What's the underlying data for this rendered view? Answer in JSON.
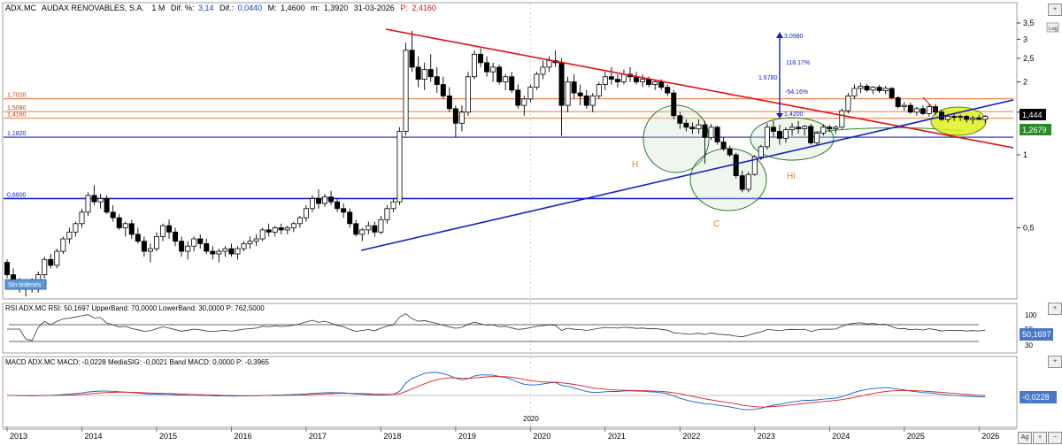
{
  "header": {
    "symbol": "ADX.MC",
    "company": "AUDAX RENOVABLES, S.A.",
    "period": "1 M",
    "dif_pct_label": "Dif. %:",
    "dif_pct": "3,14",
    "dif_label": "Dif.:",
    "dif": "0,0440",
    "max_label": "M:",
    "max": "1,4600",
    "min_label": "m:",
    "min": "1,3920",
    "date": "31-03-2026",
    "p_label": "P:",
    "p": "2,4160"
  },
  "colors": {
    "up_candle": "#ffffff",
    "down_candle": "#000000",
    "resistance_line": "#e01010",
    "support_line": "#1020c8",
    "horizontal_levels": "#f07838",
    "rsi_line": "#303030",
    "macd_line": "#1060d0",
    "signal_line": "#e02020",
    "highlight_ellipse": "#e0f020"
  },
  "chart_data": [
    {
      "type": "candlestick",
      "panel": "price",
      "scale": "log",
      "period": "monthly",
      "x_ticks": [
        "2013",
        "2014",
        "2015",
        "2016",
        "2017",
        "2018",
        "2019",
        "2020",
        "2021",
        "2022",
        "2023",
        "2024",
        "2025",
        "2026"
      ],
      "y_ticks": [
        "3,5",
        "3",
        "2,5",
        "2",
        "1,5",
        "1",
        "0,5"
      ],
      "ylim": [
        0.25,
        3.8
      ],
      "start_year": 2013,
      "ohlc": [
        [
          0.36,
          0.37,
          0.31,
          0.32
        ],
        [
          0.32,
          0.34,
          0.29,
          0.3
        ],
        [
          0.3,
          0.31,
          0.27,
          0.28
        ],
        [
          0.28,
          0.3,
          0.26,
          0.29
        ],
        [
          0.29,
          0.31,
          0.27,
          0.28
        ],
        [
          0.28,
          0.33,
          0.27,
          0.32
        ],
        [
          0.32,
          0.38,
          0.31,
          0.37
        ],
        [
          0.37,
          0.39,
          0.34,
          0.35
        ],
        [
          0.35,
          0.41,
          0.34,
          0.4
        ],
        [
          0.4,
          0.46,
          0.39,
          0.45
        ],
        [
          0.45,
          0.5,
          0.43,
          0.48
        ],
        [
          0.48,
          0.53,
          0.46,
          0.52
        ],
        [
          0.52,
          0.6,
          0.5,
          0.58
        ],
        [
          0.58,
          0.7,
          0.56,
          0.68
        ],
        [
          0.68,
          0.75,
          0.62,
          0.64
        ],
        [
          0.64,
          0.69,
          0.6,
          0.66
        ],
        [
          0.66,
          0.68,
          0.57,
          0.58
        ],
        [
          0.58,
          0.62,
          0.53,
          0.55
        ],
        [
          0.55,
          0.57,
          0.49,
          0.5
        ],
        [
          0.5,
          0.53,
          0.46,
          0.52
        ],
        [
          0.52,
          0.54,
          0.45,
          0.47
        ],
        [
          0.47,
          0.5,
          0.43,
          0.44
        ],
        [
          0.44,
          0.46,
          0.38,
          0.4
        ],
        [
          0.4,
          0.43,
          0.36,
          0.41
        ],
        [
          0.41,
          0.48,
          0.4,
          0.46
        ],
        [
          0.46,
          0.52,
          0.44,
          0.51
        ],
        [
          0.51,
          0.54,
          0.45,
          0.48
        ],
        [
          0.48,
          0.5,
          0.42,
          0.44
        ],
        [
          0.44,
          0.46,
          0.38,
          0.4
        ],
        [
          0.4,
          0.44,
          0.37,
          0.42
        ],
        [
          0.42,
          0.46,
          0.4,
          0.45
        ],
        [
          0.45,
          0.47,
          0.41,
          0.43
        ],
        [
          0.43,
          0.45,
          0.39,
          0.4
        ],
        [
          0.4,
          0.42,
          0.37,
          0.39
        ],
        [
          0.39,
          0.41,
          0.36,
          0.4
        ],
        [
          0.4,
          0.42,
          0.38,
          0.41
        ],
        [
          0.41,
          0.43,
          0.38,
          0.39
        ],
        [
          0.39,
          0.42,
          0.37,
          0.41
        ],
        [
          0.41,
          0.44,
          0.4,
          0.43
        ],
        [
          0.43,
          0.46,
          0.41,
          0.44
        ],
        [
          0.44,
          0.47,
          0.42,
          0.45
        ],
        [
          0.45,
          0.5,
          0.44,
          0.49
        ],
        [
          0.49,
          0.52,
          0.46,
          0.48
        ],
        [
          0.48,
          0.51,
          0.46,
          0.5
        ],
        [
          0.5,
          0.52,
          0.47,
          0.49
        ],
        [
          0.49,
          0.51,
          0.47,
          0.5
        ],
        [
          0.5,
          0.53,
          0.48,
          0.52
        ],
        [
          0.52,
          0.56,
          0.5,
          0.55
        ],
        [
          0.55,
          0.62,
          0.53,
          0.6
        ],
        [
          0.6,
          0.68,
          0.58,
          0.66
        ],
        [
          0.66,
          0.72,
          0.6,
          0.63
        ],
        [
          0.63,
          0.69,
          0.61,
          0.67
        ],
        [
          0.67,
          0.71,
          0.62,
          0.64
        ],
        [
          0.64,
          0.66,
          0.58,
          0.6
        ],
        [
          0.6,
          0.63,
          0.55,
          0.58
        ],
        [
          0.58,
          0.6,
          0.5,
          0.52
        ],
        [
          0.52,
          0.54,
          0.46,
          0.47
        ],
        [
          0.47,
          0.5,
          0.44,
          0.49
        ],
        [
          0.49,
          0.53,
          0.47,
          0.51
        ],
        [
          0.51,
          0.53,
          0.46,
          0.48
        ],
        [
          0.48,
          0.56,
          0.47,
          0.54
        ],
        [
          0.54,
          0.62,
          0.52,
          0.6
        ],
        [
          0.6,
          0.66,
          0.58,
          0.64
        ],
        [
          0.64,
          1.3,
          0.62,
          1.25
        ],
        [
          1.25,
          2.9,
          1.2,
          2.7
        ],
        [
          2.7,
          3.25,
          2.2,
          2.3
        ],
        [
          2.3,
          2.55,
          1.9,
          2.05
        ],
        [
          2.05,
          2.4,
          1.85,
          2.25
        ],
        [
          2.25,
          2.6,
          2.0,
          2.1
        ],
        [
          2.1,
          2.3,
          1.8,
          1.95
        ],
        [
          1.95,
          2.1,
          1.7,
          1.75
        ],
        [
          1.75,
          1.9,
          1.5,
          1.55
        ],
        [
          1.55,
          1.6,
          1.18,
          1.35
        ],
        [
          1.35,
          1.6,
          1.25,
          1.5
        ],
        [
          1.5,
          2.2,
          1.45,
          2.1
        ],
        [
          2.1,
          2.7,
          2.05,
          2.6
        ],
        [
          2.6,
          2.75,
          2.3,
          2.4
        ],
        [
          2.4,
          2.55,
          2.1,
          2.2
        ],
        [
          2.2,
          2.4,
          2.0,
          2.3
        ],
        [
          2.3,
          2.35,
          1.95,
          2.0
        ],
        [
          2.0,
          2.15,
          1.85,
          2.1
        ],
        [
          2.1,
          2.2,
          1.8,
          1.85
        ],
        [
          1.85,
          1.95,
          1.55,
          1.6
        ],
        [
          1.6,
          1.75,
          1.45,
          1.7
        ],
        [
          1.7,
          1.95,
          1.65,
          1.9
        ],
        [
          1.9,
          2.2,
          1.85,
          2.15
        ],
        [
          2.15,
          2.45,
          2.05,
          2.3
        ],
        [
          2.3,
          2.55,
          2.2,
          2.45
        ],
        [
          2.45,
          2.7,
          2.3,
          2.4
        ],
        [
          2.4,
          2.5,
          1.2,
          1.6
        ],
        [
          1.6,
          2.1,
          1.5,
          2.0
        ],
        [
          2.0,
          2.15,
          1.7,
          1.8
        ],
        [
          1.8,
          1.95,
          1.6,
          1.75
        ],
        [
          1.75,
          1.85,
          1.55,
          1.6
        ],
        [
          1.6,
          1.8,
          1.5,
          1.75
        ],
        [
          1.75,
          2.0,
          1.7,
          1.95
        ],
        [
          1.95,
          2.2,
          1.85,
          2.1
        ],
        [
          2.1,
          2.3,
          1.95,
          2.05
        ],
        [
          2.05,
          2.15,
          1.9,
          2.0
        ],
        [
          2.0,
          2.25,
          1.95,
          2.15
        ],
        [
          2.15,
          2.3,
          2.0,
          2.1
        ],
        [
          2.1,
          2.2,
          1.95,
          2.0
        ],
        [
          2.0,
          2.15,
          1.9,
          2.05
        ],
        [
          2.05,
          2.1,
          1.9,
          1.95
        ],
        [
          1.95,
          2.05,
          1.85,
          2.0
        ],
        [
          2.0,
          2.05,
          1.85,
          1.9
        ],
        [
          1.9,
          1.95,
          1.75,
          1.8
        ],
        [
          1.8,
          1.85,
          1.4,
          1.45
        ],
        [
          1.45,
          1.5,
          1.28,
          1.35
        ],
        [
          1.35,
          1.4,
          1.25,
          1.3
        ],
        [
          1.3,
          1.36,
          1.22,
          1.28
        ],
        [
          1.28,
          1.4,
          1.22,
          1.33
        ],
        [
          1.33,
          1.38,
          0.92,
          1.18
        ],
        [
          1.18,
          1.34,
          1.15,
          1.3
        ],
        [
          1.3,
          1.32,
          1.1,
          1.13
        ],
        [
          1.13,
          1.18,
          1.04,
          1.06
        ],
        [
          1.06,
          1.09,
          0.98,
          1.0
        ],
        [
          1.0,
          1.02,
          0.8,
          0.82
        ],
        [
          0.82,
          0.86,
          0.7,
          0.72
        ],
        [
          0.72,
          0.85,
          0.7,
          0.83
        ],
        [
          0.83,
          1.0,
          0.82,
          0.98
        ],
        [
          0.98,
          1.1,
          0.95,
          1.08
        ],
        [
          1.08,
          1.35,
          1.05,
          1.3
        ],
        [
          1.3,
          1.38,
          1.18,
          1.25
        ],
        [
          1.25,
          1.33,
          1.1,
          1.17
        ],
        [
          1.17,
          1.3,
          1.12,
          1.27
        ],
        [
          1.27,
          1.35,
          1.2,
          1.3
        ],
        [
          1.3,
          1.38,
          1.22,
          1.28
        ],
        [
          1.28,
          1.33,
          1.2,
          1.31
        ],
        [
          1.31,
          1.34,
          1.1,
          1.12
        ],
        [
          1.12,
          1.25,
          1.1,
          1.23
        ],
        [
          1.23,
          1.34,
          1.2,
          1.3
        ],
        [
          1.3,
          1.33,
          1.24,
          1.28
        ],
        [
          1.28,
          1.32,
          1.22,
          1.3
        ],
        [
          1.3,
          1.55,
          1.28,
          1.52
        ],
        [
          1.52,
          1.8,
          1.48,
          1.75
        ],
        [
          1.75,
          1.95,
          1.7,
          1.88
        ],
        [
          1.88,
          1.98,
          1.8,
          1.92
        ],
        [
          1.92,
          1.96,
          1.82,
          1.85
        ],
        [
          1.85,
          1.92,
          1.78,
          1.9
        ],
        [
          1.9,
          1.94,
          1.8,
          1.84
        ],
        [
          1.84,
          1.92,
          1.78,
          1.88
        ],
        [
          1.88,
          1.9,
          1.7,
          1.72
        ],
        [
          1.72,
          1.75,
          1.55,
          1.58
        ],
        [
          1.58,
          1.65,
          1.52,
          1.6
        ],
        [
          1.6,
          1.64,
          1.48,
          1.5
        ],
        [
          1.5,
          1.58,
          1.45,
          1.55
        ],
        [
          1.55,
          1.6,
          1.46,
          1.48
        ],
        [
          1.48,
          1.62,
          1.44,
          1.58
        ],
        [
          1.58,
          1.62,
          1.46,
          1.5
        ],
        [
          1.5,
          1.54,
          1.38,
          1.4
        ],
        [
          1.4,
          1.47,
          1.36,
          1.44
        ],
        [
          1.44,
          1.48,
          1.38,
          1.43
        ],
        [
          1.43,
          1.47,
          1.38,
          1.44
        ],
        [
          1.44,
          1.46,
          1.36,
          1.4
        ],
        [
          1.4,
          1.45,
          1.34,
          1.42
        ],
        [
          1.42,
          1.46,
          1.39,
          1.4
        ],
        [
          1.4,
          1.46,
          1.35,
          1.44
        ]
      ]
    },
    {
      "type": "line",
      "panel": "rsi",
      "title": "RSI ADX.MC RSI: 50,1697 UpperBand: 70,0000 LowerBand: 30,0000 P: 762,5000",
      "y_ticks": [
        "100",
        "50",
        "30"
      ],
      "bands": [
        30,
        70
      ],
      "last_value": "50,1697"
    },
    {
      "type": "line",
      "panel": "macd",
      "title": "MACD ADX.MC MACD: -0,0228 MediaSIG: -0,0021 Band MACD: 0,0000 P: -0,3965",
      "last_value": "-0,0228",
      "series": [
        {
          "name": "MACD",
          "color": "#1060d0"
        },
        {
          "name": "MediaSIG",
          "color": "#e02020"
        }
      ]
    }
  ],
  "levels": [
    {
      "label": "1,7020",
      "value": 1.702
    },
    {
      "label": "1,5080",
      "value": 1.508
    },
    {
      "label": "1,4160",
      "value": 1.416
    },
    {
      "label": "1,1820",
      "value": 1.182
    },
    {
      "label": "0,6600",
      "value": 0.66
    }
  ],
  "annotations": {
    "measure_top": "3.0980",
    "measure_pct_up": "118.17%",
    "measure_left": "1.6780",
    "measure_pct_down": "-54.16%",
    "measure_bottom": "1.4200",
    "hs_left": "H",
    "hs_center": "C",
    "hs_right": "Hi",
    "no_orders": "Sin órdenes"
  },
  "price_labels": {
    "last": "1,444",
    "level": "1,2679"
  },
  "axis_extra": {
    "mid_year": "2020",
    "log_button": "Log",
    "rsi_tick_30": "30"
  },
  "controls": {
    "plus": "+",
    "minus": "−",
    "ag": "Ag"
  }
}
